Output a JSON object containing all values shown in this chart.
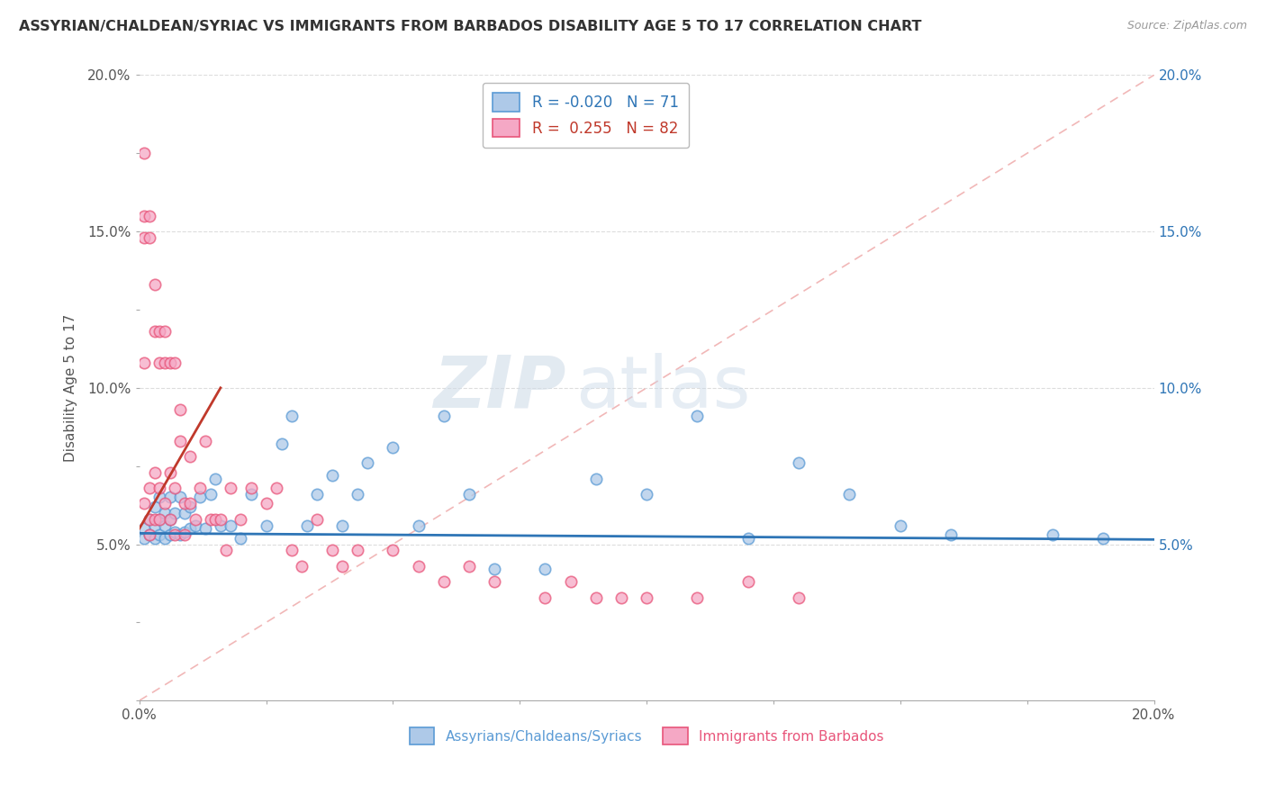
{
  "title": "ASSYRIAN/CHALDEAN/SYRIAC VS IMMIGRANTS FROM BARBADOS DISABILITY AGE 5 TO 17 CORRELATION CHART",
  "source_text": "Source: ZipAtlas.com",
  "xlabel_blue": "Assyrians/Chaldeans/Syriacs",
  "xlabel_pink": "Immigrants from Barbados",
  "ylabel": "Disability Age 5 to 17",
  "R_blue": -0.02,
  "N_blue": 71,
  "R_pink": 0.255,
  "N_pink": 82,
  "blue_color": "#aec9e8",
  "pink_color": "#f5a8c5",
  "blue_edge_color": "#5b9bd5",
  "pink_edge_color": "#e8557a",
  "reg_blue_color": "#2e75b6",
  "reg_pink_color": "#c0392b",
  "diag_color": "#f0b0b0",
  "xlim": [
    0.0,
    0.2
  ],
  "ylim": [
    0.0,
    0.2
  ],
  "xticks": [
    0.0,
    0.025,
    0.05,
    0.075,
    0.1,
    0.125,
    0.15,
    0.175,
    0.2
  ],
  "yticks": [
    0.0,
    0.025,
    0.05,
    0.075,
    0.1,
    0.125,
    0.15,
    0.175,
    0.2
  ],
  "xlabels_show": {
    "0.0": "0.0%",
    "0.20": "20.0%"
  },
  "ylabels_left": {
    "0.05": "5.0%",
    "0.10": "10.0%",
    "0.15": "15.0%",
    "0.20": "20.0%"
  },
  "ylabels_right": {
    "0.05": "5.0%",
    "0.10": "10.0%",
    "0.15": "15.0%",
    "0.20": "20.0%"
  },
  "watermark_zip": "ZIP",
  "watermark_atlas": "atlas",
  "blue_scatter_x": [
    0.001,
    0.001,
    0.002,
    0.002,
    0.003,
    0.003,
    0.003,
    0.004,
    0.004,
    0.004,
    0.005,
    0.005,
    0.005,
    0.006,
    0.006,
    0.006,
    0.007,
    0.007,
    0.008,
    0.008,
    0.009,
    0.009,
    0.01,
    0.01,
    0.011,
    0.012,
    0.013,
    0.014,
    0.015,
    0.016,
    0.018,
    0.02,
    0.022,
    0.025,
    0.028,
    0.03,
    0.033,
    0.035,
    0.038,
    0.04,
    0.043,
    0.045,
    0.05,
    0.055,
    0.06,
    0.065,
    0.07,
    0.08,
    0.09,
    0.1,
    0.11,
    0.12,
    0.13,
    0.14,
    0.15,
    0.16,
    0.18,
    0.19
  ],
  "blue_scatter_y": [
    0.052,
    0.055,
    0.053,
    0.058,
    0.052,
    0.056,
    0.062,
    0.053,
    0.058,
    0.065,
    0.052,
    0.056,
    0.06,
    0.053,
    0.058,
    0.065,
    0.054,
    0.06,
    0.053,
    0.065,
    0.054,
    0.06,
    0.055,
    0.062,
    0.056,
    0.065,
    0.055,
    0.066,
    0.071,
    0.056,
    0.056,
    0.052,
    0.066,
    0.056,
    0.082,
    0.091,
    0.056,
    0.066,
    0.072,
    0.056,
    0.066,
    0.076,
    0.081,
    0.056,
    0.091,
    0.066,
    0.042,
    0.042,
    0.071,
    0.066,
    0.091,
    0.052,
    0.076,
    0.066,
    0.056,
    0.053,
    0.053,
    0.052
  ],
  "pink_scatter_x": [
    0.001,
    0.001,
    0.001,
    0.001,
    0.001,
    0.002,
    0.002,
    0.002,
    0.002,
    0.002,
    0.003,
    0.003,
    0.003,
    0.003,
    0.004,
    0.004,
    0.004,
    0.004,
    0.005,
    0.005,
    0.005,
    0.006,
    0.006,
    0.006,
    0.007,
    0.007,
    0.007,
    0.008,
    0.008,
    0.009,
    0.009,
    0.01,
    0.01,
    0.011,
    0.012,
    0.013,
    0.014,
    0.015,
    0.016,
    0.017,
    0.018,
    0.02,
    0.022,
    0.025,
    0.027,
    0.03,
    0.032,
    0.035,
    0.038,
    0.04,
    0.043,
    0.05,
    0.055,
    0.06,
    0.065,
    0.07,
    0.08,
    0.085,
    0.09,
    0.095,
    0.1,
    0.11,
    0.12,
    0.13
  ],
  "pink_scatter_y": [
    0.175,
    0.155,
    0.148,
    0.108,
    0.063,
    0.155,
    0.148,
    0.068,
    0.058,
    0.053,
    0.133,
    0.118,
    0.073,
    0.058,
    0.118,
    0.108,
    0.068,
    0.058,
    0.118,
    0.108,
    0.063,
    0.108,
    0.073,
    0.058,
    0.108,
    0.068,
    0.053,
    0.083,
    0.093,
    0.063,
    0.053,
    0.078,
    0.063,
    0.058,
    0.068,
    0.083,
    0.058,
    0.058,
    0.058,
    0.048,
    0.068,
    0.058,
    0.068,
    0.063,
    0.068,
    0.048,
    0.043,
    0.058,
    0.048,
    0.043,
    0.048,
    0.048,
    0.043,
    0.038,
    0.043,
    0.038,
    0.033,
    0.038,
    0.033,
    0.033,
    0.033,
    0.033,
    0.038,
    0.033
  ]
}
